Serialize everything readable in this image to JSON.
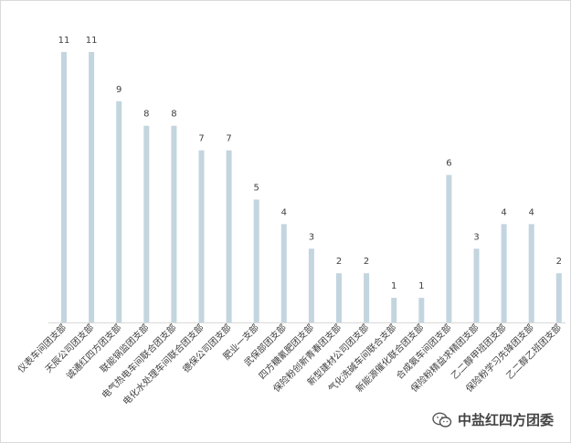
{
  "chart_data": {
    "type": "bar",
    "categories": [
      "仪表车间团支部",
      "天辰公司团支部",
      "诚通红四方团支部",
      "联能锅监团支部",
      "电气热电车间联合团支部",
      "电化水处理车间联合团支部",
      "德保公司团支部",
      "肥业一支部",
      "武保部团支部",
      "四方糖氰肥团支部",
      "保险粉创新青春团支部",
      "新型建材公司团支部",
      "气化洗碱车间联合支部",
      "新能源催化联合团支部",
      "合成氨车间团支部",
      "保险粉精益求精团支部",
      "乙二醇甲班团支部",
      "保险粉学习先锋团支部",
      "乙二醇乙班团支部"
    ],
    "values": [
      11,
      11,
      9,
      8,
      8,
      7,
      7,
      5,
      4,
      3,
      2,
      2,
      1,
      1,
      6,
      3,
      4,
      4,
      2
    ],
    "data_labels": [
      "11",
      "11",
      "9",
      "8",
      "8",
      "7",
      "7",
      "5",
      "4",
      "3",
      "2",
      "2",
      "1",
      "1",
      "6",
      "3",
      "4",
      "4",
      "2"
    ],
    "ylim": [
      0,
      11
    ],
    "grid": false,
    "legend": "none",
    "bar_color": "#c3d5df",
    "axis_color": "#d9d9d9"
  },
  "watermark": {
    "text": "中盐红四方团委",
    "icon": "wechat-icon"
  }
}
